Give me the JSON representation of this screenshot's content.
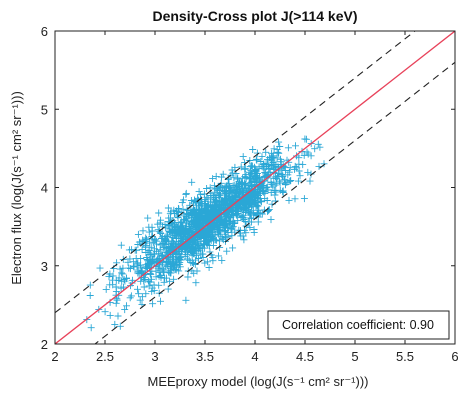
{
  "chart_data": {
    "type": "scatter",
    "title": "Density-Cross plot J(>114 keV)",
    "xlabel": "MEEproxy model (log(J(s⁻¹ cm² sr⁻¹)))",
    "ylabel": "Electron flux (log(J(s⁻¹ cm² sr⁻¹)))",
    "xlim": [
      2,
      6
    ],
    "ylim": [
      2,
      6
    ],
    "xticks": [
      "2",
      "2.5",
      "3",
      "3.5",
      "4",
      "4.5",
      "5",
      "5.5",
      "6"
    ],
    "yticks": [
      "2",
      "3",
      "4",
      "5",
      "6"
    ],
    "grid": false,
    "marker": "+",
    "colors": {
      "points": "#2aa7d6",
      "identity_line": "#e8425a",
      "bounds": "#222222"
    },
    "lines": [
      {
        "x": [
          2,
          6
        ],
        "y": [
          2,
          6
        ],
        "style": "solid",
        "color": "#e8425a"
      },
      {
        "x": [
          2,
          6
        ],
        "y": [
          2.4,
          6.4
        ],
        "style": "dashed",
        "color": "#222222"
      },
      {
        "x": [
          2,
          6
        ],
        "y": [
          1.6,
          5.6
        ],
        "style": "dashed",
        "color": "#222222"
      }
    ],
    "annotation": "Correlation coefficient: 0.90",
    "point_cloud": {
      "x_center": 3.55,
      "x_spread": 0.42,
      "x_range": [
        2.3,
        4.75
      ],
      "y_slope": 0.85,
      "y_offset": 0.55,
      "y_spread": 0.2
    }
  }
}
